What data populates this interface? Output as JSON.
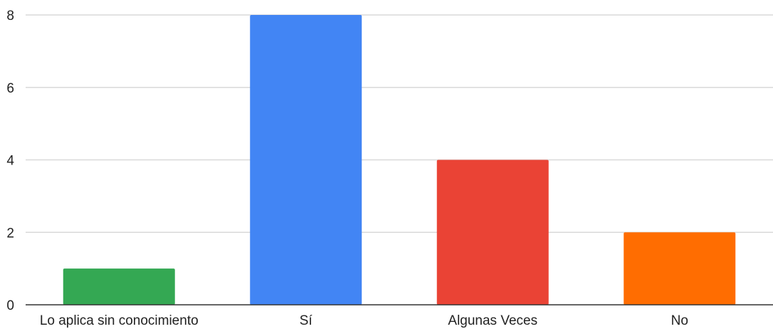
{
  "chart_data": {
    "type": "bar",
    "title": "",
    "xlabel": "",
    "ylabel": "",
    "categories": [
      "Lo aplica sin conocimiento",
      "Sí",
      "Algunas Veces",
      "No"
    ],
    "values": [
      1,
      8,
      4,
      2
    ],
    "colors": [
      "#34a853",
      "#4285f4",
      "#ea4335",
      "#ff6d01"
    ],
    "ylim": [
      0,
      8
    ],
    "yticks": [
      "0",
      "2",
      "4",
      "6",
      "8"
    ],
    "grid": true,
    "legend": "none"
  }
}
